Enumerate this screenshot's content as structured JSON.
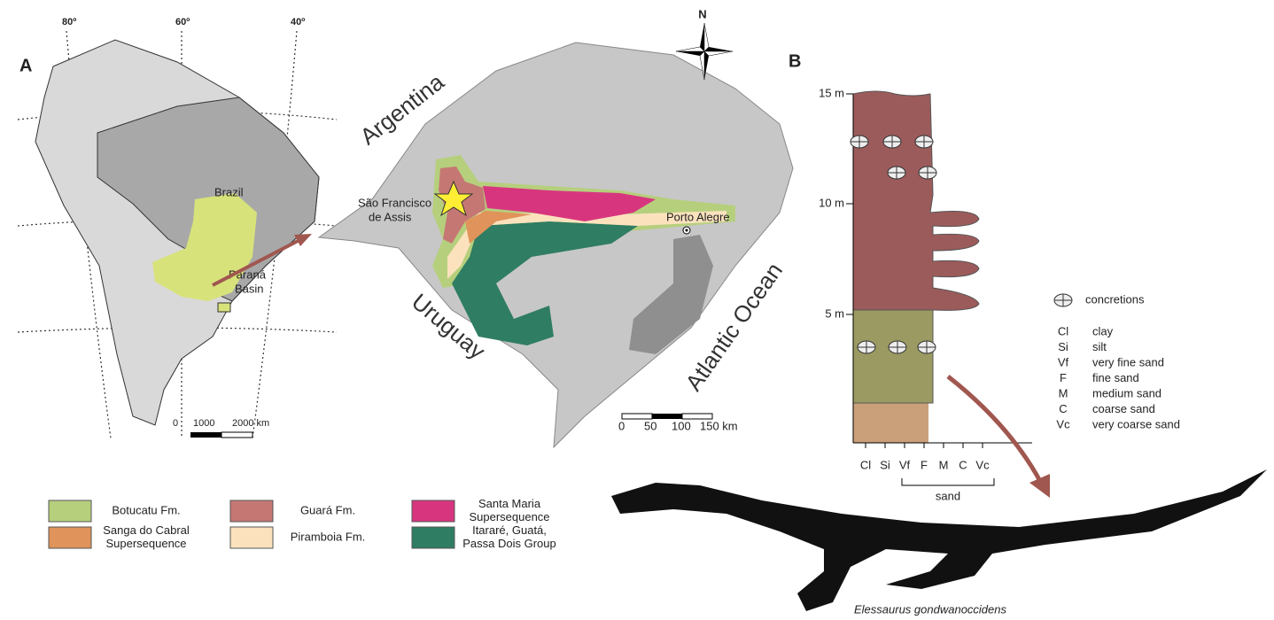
{
  "panel_a": {
    "label": "A",
    "longitudes": [
      "80º",
      "60º",
      "40º"
    ],
    "country": "Brazil",
    "basin_label": [
      "Paraná",
      "Basin"
    ],
    "scale": [
      "0",
      "1000",
      "2000 km"
    ]
  },
  "regional_map": {
    "north": "N",
    "argentina": "Argentina",
    "uruguay": "Uruguay",
    "ocean": "Atlantic Ocean",
    "locality": [
      "São Francisco",
      "de Assis"
    ],
    "city": "Porto Alegre",
    "scale": [
      "0",
      "50",
      "100",
      "150 km"
    ]
  },
  "legend": [
    {
      "lines": [
        "Botucatu Fm."
      ],
      "color": "#b6cf7d"
    },
    {
      "lines": [
        "Sanga do Cabral",
        "Supersequence"
      ],
      "color": "#e0935a"
    },
    {
      "lines": [
        "Guará Fm."
      ],
      "color": "#c57873"
    },
    {
      "lines": [
        "Piramboia Fm."
      ],
      "color": "#fbe2bd"
    },
    {
      "lines": [
        "Santa Maria",
        "Supersequence"
      ],
      "color": "#d8357f"
    },
    {
      "lines": [
        "Itararé, Guatá,",
        "Passa Dois Group"
      ],
      "color": "#2f7d62"
    }
  ],
  "panel_b": {
    "label": "B",
    "depth_ticks": [
      "15 m",
      "10 m",
      "5 m"
    ],
    "key_symbol": "concretions",
    "grain_sizes": [
      {
        "abbr": "Cl",
        "name": "clay"
      },
      {
        "abbr": "Si",
        "name": "silt"
      },
      {
        "abbr": "Vf",
        "name": "very fine sand"
      },
      {
        "abbr": "F",
        "name": "fine sand"
      },
      {
        "abbr": "M",
        "name": "medium sand"
      },
      {
        "abbr": "C",
        "name": "coarse sand"
      },
      {
        "abbr": "Vc",
        "name": "very coarse sand"
      }
    ],
    "x_labels": [
      "Cl",
      "Si",
      "Vf",
      "F",
      "M",
      "C",
      "Vc"
    ],
    "sand_bracket": "sand"
  },
  "caption": "Elessaurus gondwanoccidens"
}
